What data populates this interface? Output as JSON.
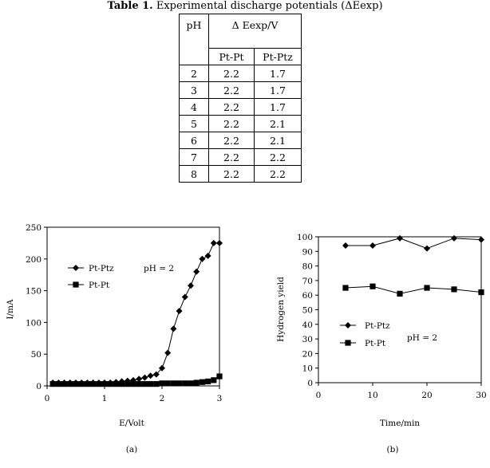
{
  "caption": {
    "label": "Table 1.",
    "text": "Experimental discharge potentials (ΔEexp)"
  },
  "table": {
    "col_ph": "pH",
    "group_header": "Δ Eexp/V",
    "sub_headers": [
      "Pt-Pt",
      "Pt-Ptz"
    ],
    "rows": [
      [
        "2",
        "2.2",
        "1.7"
      ],
      [
        "3",
        "2.2",
        "1.7"
      ],
      [
        "4",
        "2.2",
        "1.7"
      ],
      [
        "5",
        "2.2",
        "2.1"
      ],
      [
        "6",
        "2.2",
        "2.1"
      ],
      [
        "7",
        "2.2",
        "2.2"
      ],
      [
        "8",
        "2.2",
        "2.2"
      ]
    ]
  },
  "chart_data": [
    {
      "type": "line",
      "panel_label": "(a)",
      "xlabel": "E/Volt",
      "ylabel": "I/mA",
      "xlim": [
        0,
        3
      ],
      "ylim": [
        0,
        250
      ],
      "xticks": [
        0,
        1,
        2,
        3
      ],
      "yticks": [
        0,
        50,
        100,
        150,
        200,
        250
      ],
      "annotation": "pH = 2",
      "legend_position": "upper-left",
      "series": [
        {
          "name": "Pt-Ptz",
          "marker": "diamond",
          "x": [
            0.1,
            0.2,
            0.3,
            0.4,
            0.5,
            0.6,
            0.7,
            0.8,
            0.9,
            1.0,
            1.1,
            1.2,
            1.3,
            1.4,
            1.5,
            1.6,
            1.7,
            1.8,
            1.9,
            2.0,
            2.1,
            2.2,
            2.3,
            2.4,
            2.5,
            2.6,
            2.7,
            2.8,
            2.9,
            3.0
          ],
          "y": [
            5,
            5,
            5,
            5,
            5,
            5,
            5,
            5,
            5,
            5,
            5,
            6,
            7,
            8,
            9,
            11,
            13,
            16,
            18,
            28,
            52,
            90,
            118,
            140,
            158,
            180,
            200,
            205,
            225,
            225
          ]
        },
        {
          "name": "Pt-Pt",
          "marker": "square",
          "x": [
            0.1,
            0.2,
            0.3,
            0.4,
            0.5,
            0.6,
            0.7,
            0.8,
            0.9,
            1.0,
            1.1,
            1.2,
            1.3,
            1.4,
            1.5,
            1.6,
            1.7,
            1.8,
            1.9,
            2.0,
            2.1,
            2.2,
            2.3,
            2.4,
            2.5,
            2.6,
            2.7,
            2.8,
            2.9,
            3.0
          ],
          "y": [
            3,
            3,
            3,
            3,
            3,
            3,
            3,
            3,
            3,
            3,
            3,
            3,
            3,
            3,
            3,
            3,
            3,
            3,
            3,
            4,
            4,
            4,
            4,
            4,
            4,
            5,
            6,
            7,
            9,
            15
          ]
        }
      ]
    },
    {
      "type": "line",
      "panel_label": "(b)",
      "xlabel": "Time/min",
      "ylabel": "Hydrogen yield",
      "xlim": [
        0,
        30
      ],
      "ylim": [
        0,
        100
      ],
      "xticks": [
        0,
        10,
        20,
        30
      ],
      "yticks": [
        0,
        10,
        20,
        30,
        40,
        50,
        60,
        70,
        80,
        90,
        100
      ],
      "annotation": "pH = 2",
      "legend_position": "lower-left",
      "series": [
        {
          "name": "Pt-Ptz",
          "marker": "diamond",
          "x": [
            5,
            10,
            15,
            20,
            25,
            30
          ],
          "y": [
            94,
            94,
            99,
            92,
            99,
            98
          ]
        },
        {
          "name": "Pt-Pt",
          "marker": "square",
          "x": [
            5,
            10,
            15,
            20,
            25,
            30
          ],
          "y": [
            65,
            66,
            61,
            65,
            64,
            62
          ]
        }
      ]
    }
  ]
}
